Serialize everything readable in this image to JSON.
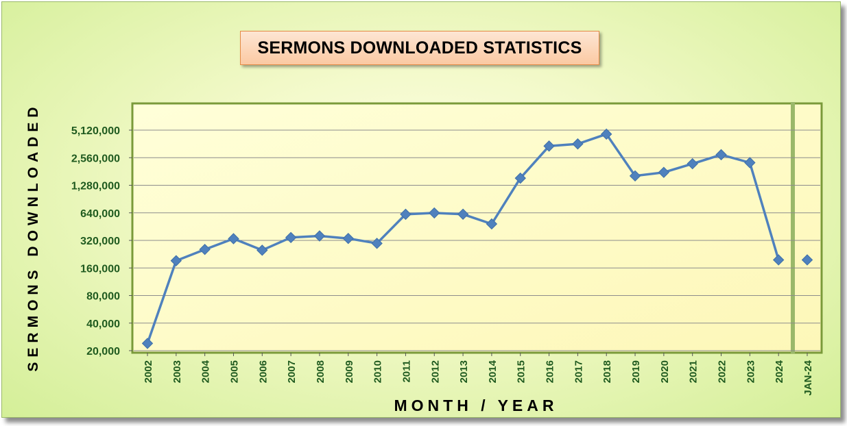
{
  "colors": {
    "line": "#4f81bd",
    "axis_text": "#1f5a1f",
    "plot_border": "#7a9a3a",
    "gridline": "#8c8c8c",
    "plot_bg": "#ffffcc"
  },
  "chart_data": {
    "type": "line",
    "title": "SERMONS DOWNLOADED STATISTICS",
    "xlabel": "MONTH / YEAR",
    "ylabel": "SERMONS DOWNLOADED",
    "y_scale": "log2",
    "ylim": [
      20000,
      5120000
    ],
    "y_ticks": [
      "5,120,000",
      "2,560,000",
      "1,280,000",
      "640,000",
      "320,000",
      "160,000",
      "80,000",
      "40,000",
      "20,000"
    ],
    "y_tick_values": [
      5120000,
      2560000,
      1280000,
      640000,
      320000,
      160000,
      80000,
      40000,
      20000
    ],
    "grid": true,
    "categories": [
      "2002",
      "2003",
      "2004",
      "2005",
      "2006",
      "2007",
      "2008",
      "2009",
      "2010",
      "2011",
      "2012",
      "2013",
      "2014",
      "2015",
      "2016",
      "2017",
      "2018",
      "2019",
      "2020",
      "2021",
      "2022",
      "2023",
      "2024",
      "JAN-24"
    ],
    "series": [
      {
        "values": [
          24000,
          192000,
          255000,
          334000,
          250000,
          344000,
          358000,
          336000,
          297000,
          617000,
          638000,
          618000,
          484000,
          1530000,
          3430000,
          3620000,
          4630000,
          1620000,
          1770000,
          2200000,
          2760000,
          2260000,
          196000,
          196000
        ],
        "connected": [
          true,
          true,
          true,
          true,
          true,
          true,
          true,
          true,
          true,
          true,
          true,
          true,
          true,
          true,
          true,
          true,
          true,
          true,
          true,
          true,
          true,
          true,
          true,
          false
        ]
      }
    ]
  }
}
